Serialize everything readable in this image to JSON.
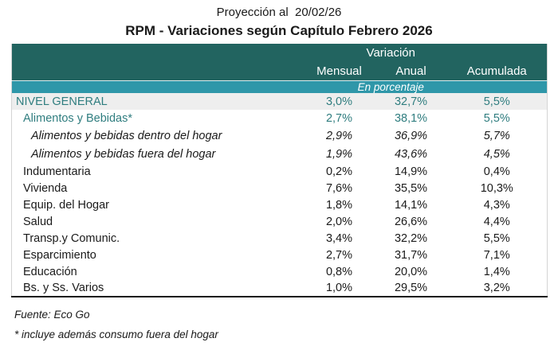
{
  "page": {
    "supertitle": "Proyección al  20/02/26",
    "title": "RPM - Variaciones según Capítulo Febrero 2026"
  },
  "table": {
    "group_header": "Variación",
    "columns": [
      "Mensual",
      "Anual",
      "Acumulada"
    ],
    "unit_note": "En porcentaje",
    "rows": [
      {
        "label": "NIVEL GENERAL",
        "values": [
          "3,0%",
          "32,7%",
          "5,5%"
        ],
        "style": "general"
      },
      {
        "label": "Alimentos y Bebidas*",
        "values": [
          "2,7%",
          "38,1%",
          "5,5%"
        ],
        "style": "teal"
      },
      {
        "label": "Alimentos y bebidas dentro del hogar",
        "values": [
          "2,9%",
          "36,9%",
          "5,7%"
        ],
        "style": "italic"
      },
      {
        "label": "Alimentos y bebidas fuera del hogar",
        "values": [
          "1,9%",
          "43,6%",
          "4,5%"
        ],
        "style": "italic"
      },
      {
        "label": "Indumentaria",
        "values": [
          "0,2%",
          "14,9%",
          "0,4%"
        ],
        "style": "plain"
      },
      {
        "label": "Vivienda",
        "values": [
          "7,6%",
          "35,5%",
          "10,3%"
        ],
        "style": "plain"
      },
      {
        "label": "Equip. del Hogar",
        "values": [
          "1,8%",
          "14,1%",
          "4,3%"
        ],
        "style": "plain"
      },
      {
        "label": "Salud",
        "values": [
          "2,0%",
          "26,6%",
          "4,4%"
        ],
        "style": "plain"
      },
      {
        "label": "Transp.y Comunic.",
        "values": [
          "3,4%",
          "32,2%",
          "5,5%"
        ],
        "style": "plain"
      },
      {
        "label": "Esparcimiento",
        "values": [
          "2,7%",
          "31,7%",
          "7,1%"
        ],
        "style": "plain"
      },
      {
        "label": "Educación",
        "values": [
          "0,8%",
          "20,0%",
          "1,4%"
        ],
        "style": "plain"
      },
      {
        "label": "Bs. y Ss. Varios",
        "values": [
          "1,0%",
          "29,5%",
          "3,2%"
        ],
        "style": "plain"
      }
    ]
  },
  "footer": {
    "source": "Fuente: Eco Go",
    "note": "* incluye además consumo fuera del hogar"
  },
  "colors": {
    "header_bg": "#226460",
    "band_bg": "#2f97a9",
    "teal_text": "#2f7d7f",
    "general_row_bg": "#eeeeee",
    "table_side_border": "#d4d4d4",
    "table_bottom_border": "#161616"
  },
  "chart_data": {
    "type": "table",
    "title": "RPM - Variaciones según Capítulo Febrero 2026",
    "subtitle": "Proyección al  20/02/26",
    "group_header": "Variación",
    "unit": "En porcentaje",
    "columns": [
      "Mensual",
      "Anual",
      "Acumulada"
    ],
    "rows": [
      {
        "label": "NIVEL GENERAL",
        "mensual": 3.0,
        "anual": 32.7,
        "acumulada": 5.5
      },
      {
        "label": "Alimentos y Bebidas*",
        "mensual": 2.7,
        "anual": 38.1,
        "acumulada": 5.5
      },
      {
        "label": "Alimentos y bebidas dentro del hogar",
        "mensual": 2.9,
        "anual": 36.9,
        "acumulada": 5.7
      },
      {
        "label": "Alimentos y bebidas fuera del hogar",
        "mensual": 1.9,
        "anual": 43.6,
        "acumulada": 4.5
      },
      {
        "label": "Indumentaria",
        "mensual": 0.2,
        "anual": 14.9,
        "acumulada": 0.4
      },
      {
        "label": "Vivienda",
        "mensual": 7.6,
        "anual": 35.5,
        "acumulada": 10.3
      },
      {
        "label": "Equip. del Hogar",
        "mensual": 1.8,
        "anual": 14.1,
        "acumulada": 4.3
      },
      {
        "label": "Salud",
        "mensual": 2.0,
        "anual": 26.6,
        "acumulada": 4.4
      },
      {
        "label": "Transp.y Comunic.",
        "mensual": 3.4,
        "anual": 32.2,
        "acumulada": 5.5
      },
      {
        "label": "Esparcimiento",
        "mensual": 2.7,
        "anual": 31.7,
        "acumulada": 7.1
      },
      {
        "label": "Educación",
        "mensual": 0.8,
        "anual": 20.0,
        "acumulada": 1.4
      },
      {
        "label": "Bs. y Ss. Varios",
        "mensual": 1.0,
        "anual": 29.5,
        "acumulada": 3.2
      }
    ],
    "source": "Fuente: Eco Go",
    "footnote": "* incluye además consumo fuera del hogar"
  }
}
